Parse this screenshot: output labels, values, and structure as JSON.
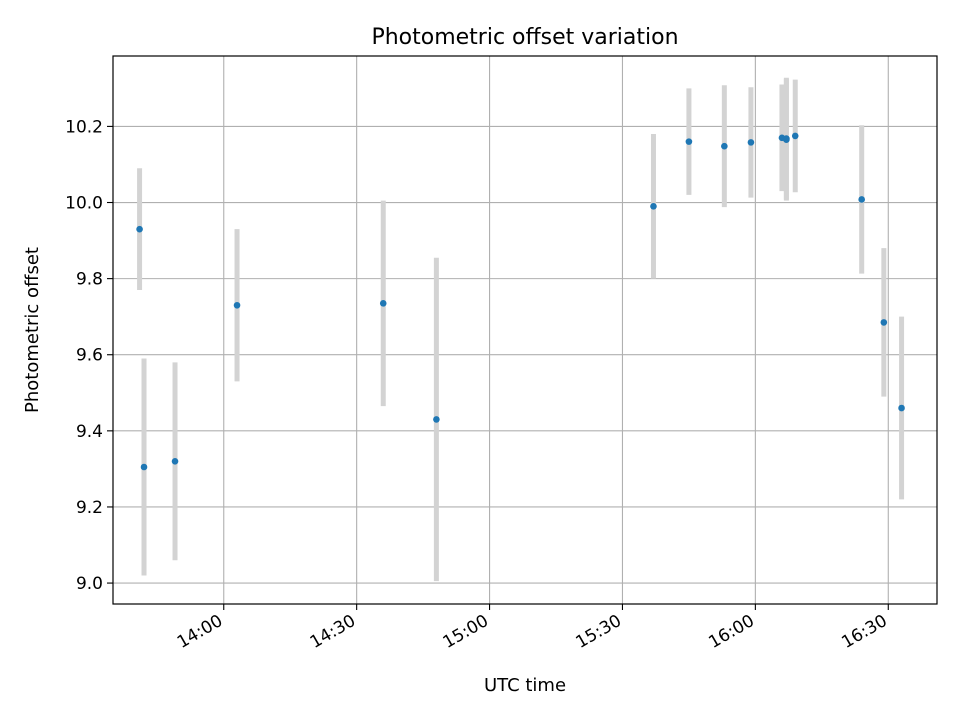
{
  "chart_data": {
    "type": "scatter",
    "title": "Photometric offset variation",
    "xlabel": "UTC time",
    "ylabel": "Photometric offset",
    "x_axis_type": "time",
    "xlim": [
      "13:35",
      "16:41"
    ],
    "ylim": [
      8.945,
      10.385
    ],
    "xticks": [
      "14:00",
      "14:30",
      "15:00",
      "15:30",
      "16:00",
      "16:30"
    ],
    "yticks": [
      "9.0",
      "9.2",
      "9.4",
      "9.6",
      "9.8",
      "10.0",
      "10.2"
    ],
    "grid": true,
    "legend": "none",
    "point_color": "#1f77b4",
    "errorbar_color": "#d3d3d3",
    "points": [
      {
        "x": "13:41",
        "y": 9.93,
        "yerr": 0.16
      },
      {
        "x": "13:42",
        "y": 9.305,
        "yerr": 0.285
      },
      {
        "x": "13:49",
        "y": 9.32,
        "yerr": 0.26
      },
      {
        "x": "14:03",
        "y": 9.73,
        "yerr": 0.2
      },
      {
        "x": "14:36",
        "y": 9.735,
        "yerr": 0.27
      },
      {
        "x": "14:48",
        "y": 9.43,
        "yerr": 0.425
      },
      {
        "x": "15:37",
        "y": 9.99,
        "yerr": 0.19
      },
      {
        "x": "15:45",
        "y": 10.16,
        "yerr": 0.14
      },
      {
        "x": "15:53",
        "y": 10.148,
        "yerr": 0.16
      },
      {
        "x": "15:59",
        "y": 10.158,
        "yerr": 0.145
      },
      {
        "x": "16:06",
        "y": 10.17,
        "yerr": 0.14
      },
      {
        "x": "16:07",
        "y": 10.168,
        "yerr": 0.16
      },
      {
        "x": "16:07",
        "y": 10.165,
        "yerr": 0.16
      },
      {
        "x": "16:09",
        "y": 10.175,
        "yerr": 0.148
      },
      {
        "x": "16:24",
        "y": 10.008,
        "yerr": 0.195
      },
      {
        "x": "16:29",
        "y": 9.685,
        "yerr": 0.195
      },
      {
        "x": "16:33",
        "y": 9.46,
        "yerr": 0.24
      }
    ]
  }
}
